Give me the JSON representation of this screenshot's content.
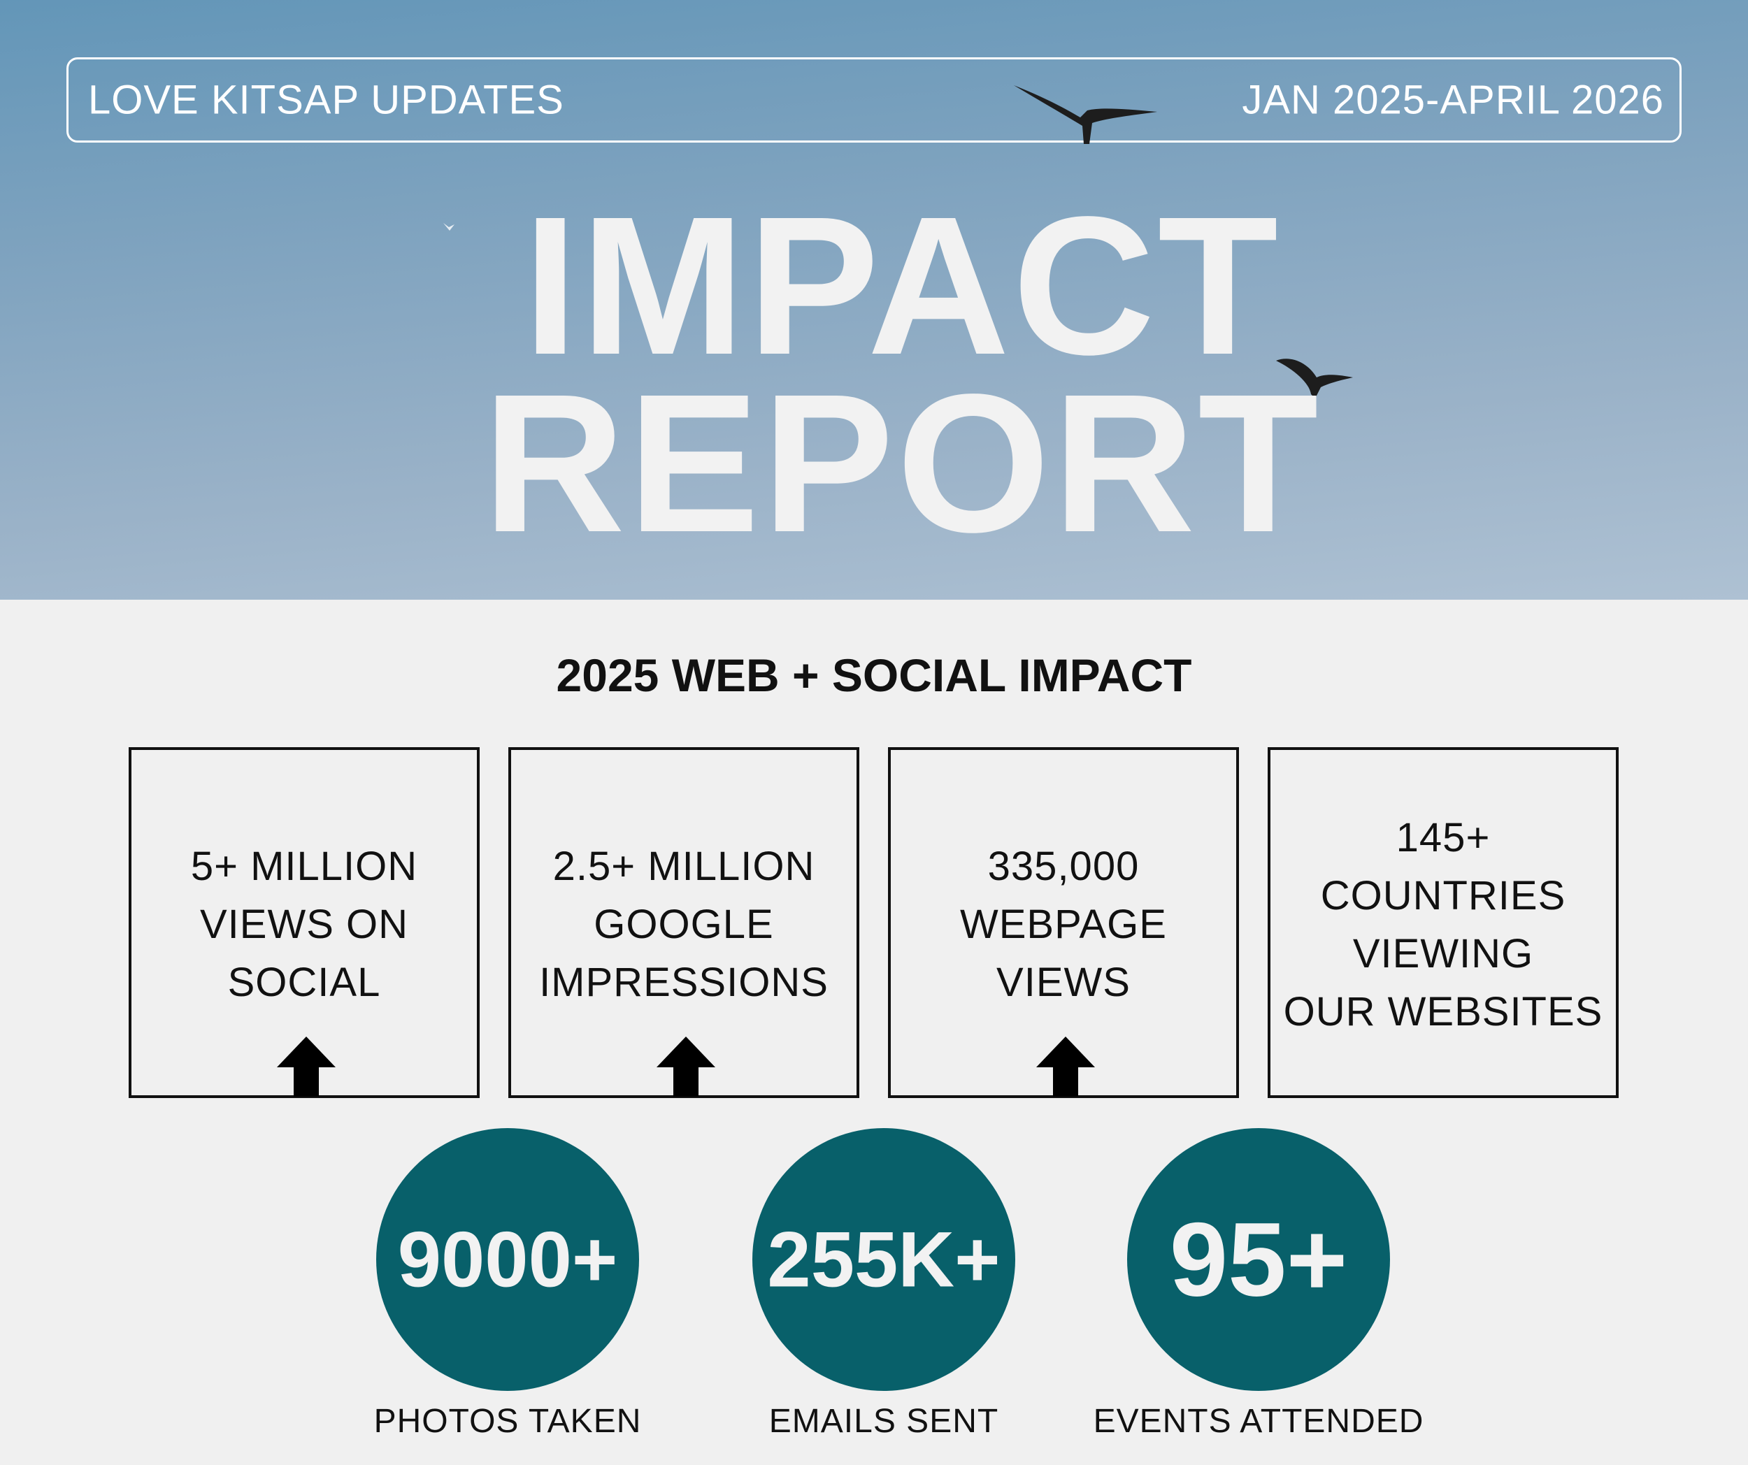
{
  "header": {
    "left_label": "LOVE KITSAP UPDATES",
    "right_label": "JAN 2025-APRIL 2026",
    "title_line1": "IMPACT",
    "title_line2": "REPORT"
  },
  "section": {
    "title": "2025 WEB + SOCIAL IMPACT"
  },
  "cards": [
    {
      "text": "5+ MILLION\nVIEWS ON\nSOCIAL",
      "trend_icon": "up-arrow-icon"
    },
    {
      "text": "2.5+ MILLION\nGOOGLE\nIMPRESSIONS",
      "trend_icon": "up-arrow-icon"
    },
    {
      "text": "335,000\nWEBPAGE\nVIEWS",
      "trend_icon": "up-arrow-icon"
    },
    {
      "text": "145+\nCOUNTRIES\nVIEWING\nOUR WEBSITES"
    }
  ],
  "stats": [
    {
      "value": "9000+",
      "label": "PHOTOS TAKEN"
    },
    {
      "value": "255K+",
      "label": "EMAILS SENT"
    },
    {
      "value": "95+",
      "label": "EVENTS ATTENDED"
    }
  ],
  "colors": {
    "circle": "#08606a",
    "sky_top": "#6396b8",
    "sky_bottom": "#aec1d3",
    "text_dark": "#111111"
  }
}
